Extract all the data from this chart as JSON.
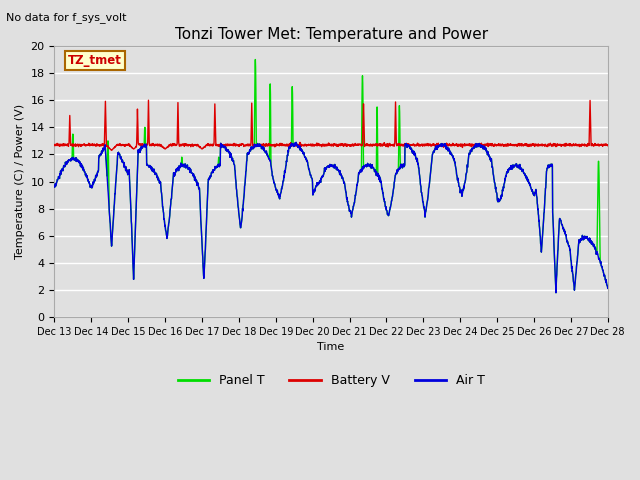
{
  "title": "Tonzi Tower Met: Temperature and Power",
  "no_data_text": "No data for f_sys_volt",
  "ylabel": "Temperature (C) / Power (V)",
  "xlabel": "Time",
  "ylim": [
    0,
    20
  ],
  "bg_color": "#e0e0e0",
  "grid_color": "#ffffff",
  "legend_entries": [
    "Panel T",
    "Battery V",
    "Air T"
  ],
  "legend_colors": [
    "#00dd00",
    "#dd0000",
    "#0000dd"
  ],
  "tz_tmet_label": "TZ_tmet",
  "x_tick_labels": [
    "Dec 13",
    "Dec 14",
    "Dec 15",
    "Dec 16",
    "Dec 17",
    "Dec 18",
    "Dec 19",
    "Dec 20",
    "Dec 21",
    "Dec 22",
    "Dec 23",
    "Dec 24",
    "Dec 25",
    "Dec 26",
    "Dec 27",
    "Dec 28"
  ],
  "x_tick_positions": [
    13,
    14,
    15,
    16,
    17,
    18,
    19,
    20,
    21,
    22,
    23,
    24,
    25,
    26,
    27,
    28
  ],
  "yticks": [
    0,
    2,
    4,
    6,
    8,
    10,
    12,
    14,
    16,
    18,
    20
  ]
}
